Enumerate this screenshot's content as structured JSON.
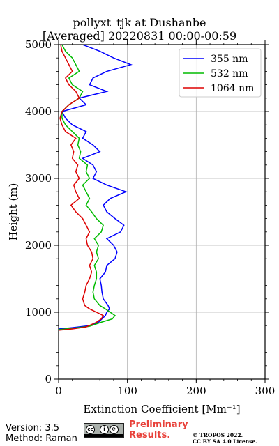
{
  "chart_data": {
    "type": "line",
    "title": "pollyxt_tjk at Dushanbe",
    "subtitle": "[Averaged] 20220831 00:00-00:59",
    "xlabel": "Extinction Coefficient [Mm⁻¹]",
    "ylabel": "Height (m)",
    "xlim": [
      0,
      300
    ],
    "ylim": [
      0,
      5000
    ],
    "xticks": [
      0,
      100,
      200,
      300
    ],
    "yticks": [
      0,
      1000,
      2000,
      3000,
      4000,
      5000
    ],
    "grid": true,
    "legend_position": "top-right",
    "series": [
      {
        "name": "355 nm",
        "color": "#0000ff",
        "points": [
          [
            0,
            750
          ],
          [
            20,
            770
          ],
          [
            45,
            800
          ],
          [
            58,
            850
          ],
          [
            63,
            900
          ],
          [
            68,
            950
          ],
          [
            70,
            1000
          ],
          [
            74,
            1050
          ],
          [
            72,
            1100
          ],
          [
            65,
            1200
          ],
          [
            63,
            1300
          ],
          [
            62,
            1400
          ],
          [
            60,
            1500
          ],
          [
            68,
            1600
          ],
          [
            70,
            1700
          ],
          [
            82,
            1800
          ],
          [
            85,
            1900
          ],
          [
            80,
            2000
          ],
          [
            70,
            2100
          ],
          [
            90,
            2200
          ],
          [
            95,
            2300
          ],
          [
            82,
            2400
          ],
          [
            70,
            2500
          ],
          [
            65,
            2600
          ],
          [
            75,
            2700
          ],
          [
            98,
            2800
          ],
          [
            70,
            2900
          ],
          [
            50,
            3000
          ],
          [
            55,
            3100
          ],
          [
            50,
            3200
          ],
          [
            35,
            3300
          ],
          [
            60,
            3400
          ],
          [
            50,
            3500
          ],
          [
            35,
            3600
          ],
          [
            40,
            3700
          ],
          [
            20,
            3800
          ],
          [
            10,
            3900
          ],
          [
            5,
            4000
          ],
          [
            40,
            4100
          ],
          [
            30,
            4200
          ],
          [
            70,
            4300
          ],
          [
            45,
            4400
          ],
          [
            50,
            4500
          ],
          [
            70,
            4600
          ],
          [
            105,
            4700
          ],
          [
            80,
            4800
          ],
          [
            60,
            4900
          ],
          [
            35,
            5000
          ]
        ]
      },
      {
        "name": "532 nm",
        "color": "#00bb00",
        "points": [
          [
            0,
            740
          ],
          [
            20,
            760
          ],
          [
            45,
            790
          ],
          [
            62,
            850
          ],
          [
            78,
            900
          ],
          [
            82,
            950
          ],
          [
            75,
            1000
          ],
          [
            68,
            1050
          ],
          [
            60,
            1100
          ],
          [
            52,
            1200
          ],
          [
            50,
            1300
          ],
          [
            52,
            1400
          ],
          [
            55,
            1500
          ],
          [
            55,
            1600
          ],
          [
            52,
            1700
          ],
          [
            58,
            1800
          ],
          [
            55,
            1900
          ],
          [
            58,
            2000
          ],
          [
            52,
            2100
          ],
          [
            62,
            2200
          ],
          [
            65,
            2300
          ],
          [
            55,
            2400
          ],
          [
            48,
            2500
          ],
          [
            40,
            2600
          ],
          [
            45,
            2700
          ],
          [
            40,
            2800
          ],
          [
            35,
            2900
          ],
          [
            45,
            3000
          ],
          [
            40,
            3100
          ],
          [
            42,
            3200
          ],
          [
            30,
            3300
          ],
          [
            32,
            3400
          ],
          [
            28,
            3500
          ],
          [
            30,
            3600
          ],
          [
            20,
            3700
          ],
          [
            10,
            3800
          ],
          [
            5,
            3900
          ],
          [
            5,
            4000
          ],
          [
            15,
            4100
          ],
          [
            30,
            4200
          ],
          [
            35,
            4300
          ],
          [
            20,
            4400
          ],
          [
            15,
            4500
          ],
          [
            30,
            4600
          ],
          [
            25,
            4700
          ],
          [
            20,
            4800
          ],
          [
            10,
            4900
          ],
          [
            5,
            5000
          ]
        ]
      },
      {
        "name": "1064 nm",
        "color": "#dd0000",
        "points": [
          [
            0,
            730
          ],
          [
            20,
            750
          ],
          [
            40,
            780
          ],
          [
            55,
            850
          ],
          [
            62,
            900
          ],
          [
            65,
            950
          ],
          [
            55,
            1000
          ],
          [
            45,
            1050
          ],
          [
            38,
            1100
          ],
          [
            35,
            1200
          ],
          [
            38,
            1300
          ],
          [
            40,
            1400
          ],
          [
            45,
            1500
          ],
          [
            48,
            1600
          ],
          [
            45,
            1700
          ],
          [
            50,
            1800
          ],
          [
            48,
            1900
          ],
          [
            42,
            2000
          ],
          [
            40,
            2100
          ],
          [
            45,
            2200
          ],
          [
            40,
            2300
          ],
          [
            35,
            2400
          ],
          [
            25,
            2500
          ],
          [
            18,
            2600
          ],
          [
            30,
            2700
          ],
          [
            25,
            2800
          ],
          [
            22,
            2900
          ],
          [
            30,
            3000
          ],
          [
            25,
            3100
          ],
          [
            28,
            3200
          ],
          [
            20,
            3300
          ],
          [
            22,
            3400
          ],
          [
            18,
            3500
          ],
          [
            25,
            3600
          ],
          [
            10,
            3700
          ],
          [
            5,
            3800
          ],
          [
            2,
            3900
          ],
          [
            5,
            4000
          ],
          [
            15,
            4100
          ],
          [
            30,
            4200
          ],
          [
            25,
            4300
          ],
          [
            15,
            4400
          ],
          [
            10,
            4500
          ],
          [
            20,
            4600
          ],
          [
            15,
            4700
          ],
          [
            10,
            4800
          ],
          [
            5,
            4900
          ],
          [
            3,
            5000
          ]
        ]
      }
    ]
  },
  "footer": {
    "version": "Version: 3.5",
    "method": "Method: Raman",
    "preliminary_line1": "Preliminary",
    "preliminary_line2": "Results.",
    "copyright_line1": "© TROPOS 2022.",
    "copyright_line2": "CC BY SA 4.0 License.",
    "cc_badge_label": "cc"
  }
}
